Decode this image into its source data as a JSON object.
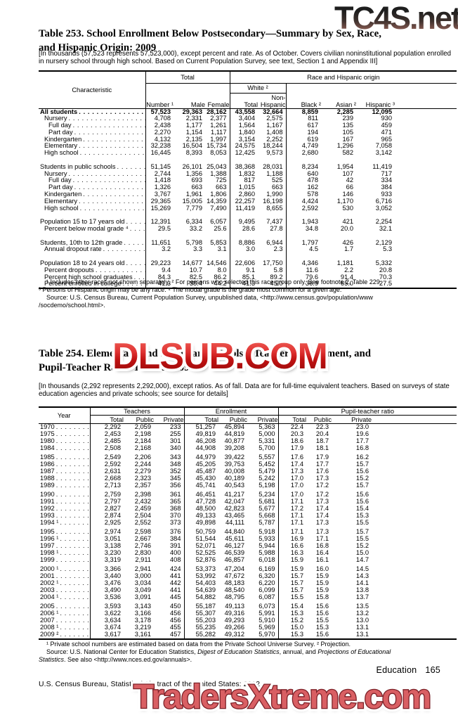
{
  "watermarks": {
    "top": "TC4S.net",
    "middle": "DLSUB.COM",
    "bottom": "TradersXtreme.com"
  },
  "table253": {
    "title_lines": [
      "Table 253. School Enrollment Below Postsecondary—Summary by Sex, Race,",
      "and Hispanic Origin: 2009"
    ],
    "note": "[In thousands (57,523 represents 57,523,000), except percent and rate. As of October. Covers civilian noninstitutional population enrolled in nursery school through high school. Based on Current Population Survey, see text, Section 1 and Appendix III]",
    "header": {
      "characteristic": "Characteristic",
      "group_total": "Total",
      "group_race": "Race and Hispanic origin",
      "group_white": "White ²",
      "col_number": "Number ¹",
      "col_male": "Male",
      "col_female": "Female",
      "col_white_total": "Total",
      "col_non_hispanic": "Non-\nHispanic",
      "col_black": "Black ²",
      "col_asian": "Asian ²",
      "col_hispanic": "Hispanic ³"
    },
    "sections": [
      [
        {
          "label": "All students",
          "indent": 0,
          "bold": true,
          "values": [
            "57,523",
            "29,363",
            "28,162",
            "43,558",
            "32,664",
            "8,859",
            "2,285",
            "12,095"
          ]
        },
        {
          "label": "Nursery",
          "indent": 1,
          "values": [
            "4,708",
            "2,331",
            "2,377",
            "3,404",
            "2,575",
            "811",
            "239",
            "930"
          ]
        },
        {
          "label": "Full day",
          "indent": 2,
          "values": [
            "2,438",
            "1,177",
            "1,261",
            "1,564",
            "1,167",
            "617",
            "135",
            "459"
          ]
        },
        {
          "label": "Part day",
          "indent": 2,
          "values": [
            "2,270",
            "1,154",
            "1,117",
            "1,840",
            "1,408",
            "194",
            "105",
            "471"
          ]
        },
        {
          "label": "Kindergarten",
          "indent": 1,
          "values": [
            "4,132",
            "2,135",
            "1,997",
            "3,154",
            "2,252",
            "619",
            "167",
            "965"
          ]
        },
        {
          "label": "Elementary",
          "indent": 1,
          "values": [
            "32,238",
            "16,504",
            "15,734",
            "24,575",
            "18,244",
            "4,749",
            "1,296",
            "7,058"
          ]
        },
        {
          "label": "High school",
          "indent": 1,
          "values": [
            "16,445",
            "8,393",
            "8,053",
            "12,425",
            "9,573",
            "2,680",
            "582",
            "3,142"
          ]
        }
      ],
      [
        {
          "label": "Students in public schools",
          "indent": 0,
          "values": [
            "51,145",
            "26,101",
            "25,043",
            "38,368",
            "28,031",
            "8,234",
            "1,954",
            "11,419"
          ]
        },
        {
          "label": "Nursery",
          "indent": 1,
          "values": [
            "2,744",
            "1,356",
            "1,388",
            "1,832",
            "1,188",
            "640",
            "107",
            "717"
          ]
        },
        {
          "label": "Full day",
          "indent": 2,
          "values": [
            "1,418",
            "693",
            "725",
            "817",
            "525",
            "478",
            "42",
            "334"
          ]
        },
        {
          "label": "Part day",
          "indent": 2,
          "values": [
            "1,326",
            "663",
            "663",
            "1,015",
            "663",
            "162",
            "66",
            "384"
          ]
        },
        {
          "label": "Kindergarten",
          "indent": 1,
          "values": [
            "3,767",
            "1,961",
            "1,806",
            "2,860",
            "1,990",
            "578",
            "146",
            "933"
          ]
        },
        {
          "label": "Elementary",
          "indent": 1,
          "values": [
            "29,365",
            "15,005",
            "14,359",
            "22,257",
            "16,198",
            "4,424",
            "1,170",
            "6,716"
          ]
        },
        {
          "label": "High school",
          "indent": 1,
          "values": [
            "15,269",
            "7,779",
            "7,490",
            "11,419",
            "8,655",
            "2,592",
            "530",
            "3,052"
          ]
        }
      ],
      [
        {
          "label": "Population 15 to 17 years old",
          "indent": 0,
          "values": [
            "12,391",
            "6,334",
            "6,057",
            "9,495",
            "7,437",
            "1,943",
            "421",
            "2,254"
          ]
        },
        {
          "label": "Percent below modal grade ⁴",
          "indent": 1,
          "values": [
            "29.5",
            "33.2",
            "25.6",
            "28.6",
            "27.8",
            "34.8",
            "20.0",
            "32.1"
          ]
        }
      ],
      [
        {
          "label": "Students, 10th to 12th grade",
          "indent": 0,
          "values": [
            "11,651",
            "5,798",
            "5,853",
            "8,886",
            "6,944",
            "1,797",
            "426",
            "2,129"
          ]
        },
        {
          "label": "Annual dropout rate",
          "indent": 1,
          "values": [
            "3.2",
            "3.3",
            "3.1",
            "3.0",
            "2.3",
            "4.5",
            "1.7",
            "5.3"
          ]
        }
      ],
      [
        {
          "label": "Population 18 to 24 years old",
          "indent": 0,
          "values": [
            "29,223",
            "14,677",
            "14,546",
            "22,606",
            "17,750",
            "4,346",
            "1,181",
            "5,332"
          ]
        },
        {
          "label": "Percent dropouts",
          "indent": 1,
          "values": [
            "9.4",
            "10.7",
            "8.0",
            "9.1",
            "5.8",
            "11.6",
            "2.2",
            "20.8"
          ]
        },
        {
          "label": "Percent high school graduates",
          "indent": 1,
          "values": [
            "84.3",
            "82.5",
            "86.2",
            "85.1",
            "89.2",
            "79.6",
            "91.4",
            "70.3"
          ]
        },
        {
          "label": "Percent enrolled in college",
          "indent": 1,
          "values": [
            "41.3",
            "38.4",
            "44.2",
            "41.3",
            "45.0",
            "36.9",
            "65.0",
            "27.5"
          ]
        }
      ]
    ],
    "footnotes": [
      {
        "indent": true,
        "segs": [
          {
            "t": "¹ Includes other races not shown separately. ² For persons who selected this race group only. See footnote 2, Table 229."
          }
        ]
      },
      {
        "indent": false,
        "segs": [
          {
            "t": "³ Persons of Hispanic origin may be any race. ⁴ The modal grade is the grade most common for a given age."
          }
        ]
      },
      {
        "indent": true,
        "segs": [
          {
            "t": "Source: U.S. Census Bureau, Current Population Survey, unpublished data, <http://www.census.gov/population/www"
          }
        ]
      },
      {
        "indent": false,
        "segs": [
          {
            "t": "/socdemo/school.html>."
          }
        ]
      }
    ]
  },
  "table254": {
    "title_lines": [
      "Table 254. Elementary and Secondary Schools—Teachers, Enrollment, and",
      "Pupil-Teacher Ratio: 1970 to 2009"
    ],
    "note": "[In thousands (2,292 represents 2,292,000), except ratios. As of fall. Data are for full-time equivalent teachers. Based on surveys of state education agencies and private schools; see source for details]",
    "header": {
      "year": "Year",
      "groups": [
        {
          "label": "Teachers"
        },
        {
          "label": "Enrollment"
        },
        {
          "label": "Pupil-teacher ratio"
        }
      ],
      "sub": [
        "Total",
        "Public",
        "Private"
      ]
    },
    "sections": [
      [
        {
          "label": "1970",
          "indent": 0,
          "values": [
            "2,292",
            "2,059",
            "233",
            "51,257",
            "45,894",
            "5,363",
            "22.4",
            "22.3",
            "23.0"
          ]
        },
        {
          "label": "1975",
          "indent": 0,
          "values": [
            "2,453",
            "2,198",
            "255",
            "49,819",
            "44,819",
            "5,000",
            "20.3",
            "20.4",
            "19.6"
          ]
        },
        {
          "label": "1980",
          "indent": 0,
          "values": [
            "2,485",
            "2,184",
            "301",
            "46,208",
            "40,877",
            "5,331",
            "18.6",
            "18.7",
            "17.7"
          ]
        },
        {
          "label": "1984",
          "indent": 0,
          "values": [
            "2,508",
            "2,168",
            "340",
            "44,908",
            "39,208",
            "5,700",
            "17.9",
            "18.1",
            "16.8"
          ]
        }
      ],
      [
        {
          "label": "1985",
          "indent": 0,
          "values": [
            "2,549",
            "2,206",
            "343",
            "44,979",
            "39,422",
            "5,557",
            "17.6",
            "17.9",
            "16.2"
          ]
        },
        {
          "label": "1986",
          "indent": 0,
          "values": [
            "2,592",
            "2,244",
            "348",
            "45,205",
            "39,753",
            "5,452",
            "17.4",
            "17.7",
            "15.7"
          ]
        },
        {
          "label": "1987",
          "indent": 0,
          "values": [
            "2,631",
            "2,279",
            "352",
            "45,487",
            "40,008",
            "5,479",
            "17.3",
            "17.6",
            "15.6"
          ]
        },
        {
          "label": "1988",
          "indent": 0,
          "values": [
            "2,668",
            "2,323",
            "345",
            "45,430",
            "40,189",
            "5,242",
            "17.0",
            "17.3",
            "15.2"
          ]
        },
        {
          "label": "1989",
          "indent": 0,
          "values": [
            "2,713",
            "2,357",
            "356",
            "45,741",
            "40,543",
            "5,198",
            "17.0",
            "17.2",
            "15.7"
          ]
        }
      ],
      [
        {
          "label": "1990",
          "indent": 0,
          "values": [
            "2,759",
            "2,398",
            "361",
            "46,451",
            "41,217",
            "5,234",
            "17.0",
            "17.2",
            "15.6"
          ]
        },
        {
          "label": "1991",
          "indent": 0,
          "values": [
            "2,797",
            "2,432",
            "365",
            "47,728",
            "42,047",
            "5,681",
            "17.1",
            "17.3",
            "15.6"
          ]
        },
        {
          "label": "1992",
          "indent": 0,
          "values": [
            "2,827",
            "2,459",
            "368",
            "48,500",
            "42,823",
            "5,677",
            "17.2",
            "17.4",
            "15.4"
          ]
        },
        {
          "label": "1993",
          "indent": 0,
          "values": [
            "2,874",
            "2,504",
            "370",
            "49,133",
            "43,465",
            "5,668",
            "17.1",
            "17.4",
            "15.3"
          ]
        },
        {
          "label": "1994 ¹",
          "indent": 0,
          "values": [
            "2,925",
            "2,552",
            "373",
            "49,898",
            "44,111",
            "5,787",
            "17.1",
            "17.3",
            "15.5"
          ]
        }
      ],
      [
        {
          "label": "1995",
          "indent": 0,
          "values": [
            "2,974",
            "2,598",
            "376",
            "50,759",
            "44,840",
            "5,918",
            "17.1",
            "17.3",
            "15.7"
          ]
        },
        {
          "label": "1996 ¹",
          "indent": 0,
          "values": [
            "3,051",
            "2,667",
            "384",
            "51,544",
            "45,611",
            "5,933",
            "16.9",
            "17.1",
            "15.5"
          ]
        },
        {
          "label": "1997",
          "indent": 0,
          "values": [
            "3,138",
            "2,746",
            "391",
            "52,071",
            "46,127",
            "5,944",
            "16.6",
            "16.8",
            "15.2"
          ]
        },
        {
          "label": "1998 ¹",
          "indent": 0,
          "values": [
            "3,230",
            "2,830",
            "400",
            "52,525",
            "46,539",
            "5,988",
            "16.3",
            "16.4",
            "15.0"
          ]
        },
        {
          "label": "1999",
          "indent": 0,
          "values": [
            "3,319",
            "2,911",
            "408",
            "52,876",
            "46,857",
            "6,018",
            "15.9",
            "16.1",
            "14.7"
          ]
        }
      ],
      [
        {
          "label": "2000 ¹",
          "indent": 0,
          "values": [
            "3,366",
            "2,941",
            "424",
            "53,373",
            "47,204",
            "6,169",
            "15.9",
            "16.0",
            "14.5"
          ]
        },
        {
          "label": "2001",
          "indent": 0,
          "values": [
            "3,440",
            "3,000",
            "441",
            "53,992",
            "47,672",
            "6,320",
            "15.7",
            "15.9",
            "14.3"
          ]
        },
        {
          "label": "2002 ¹",
          "indent": 0,
          "values": [
            "3,476",
            "3,034",
            "442",
            "54,403",
            "48,183",
            "6,220",
            "15.7",
            "15.9",
            "14.1"
          ]
        },
        {
          "label": "2003",
          "indent": 0,
          "values": [
            "3,490",
            "3,049",
            "441",
            "54,639",
            "48,540",
            "6,099",
            "15.7",
            "15.9",
            "13.8"
          ]
        },
        {
          "label": "2004 ¹",
          "indent": 0,
          "values": [
            "3,536",
            "3,091",
            "445",
            "54,882",
            "48,795",
            "6,087",
            "15.5",
            "15.8",
            "13.7"
          ]
        }
      ],
      [
        {
          "label": "2005",
          "indent": 0,
          "values": [
            "3,593",
            "3,143",
            "450",
            "55,187",
            "49,113",
            "6,073",
            "15.4",
            "15.6",
            "13.5"
          ]
        },
        {
          "label": "2006 ¹",
          "indent": 0,
          "values": [
            "3,622",
            "3,166",
            "456",
            "55,307",
            "49,316",
            "5,991",
            "15.3",
            "15.6",
            "13.2"
          ]
        },
        {
          "label": "2007",
          "indent": 0,
          "values": [
            "3,634",
            "3,178",
            "456",
            "55,203",
            "49,293",
            "5,910",
            "15.2",
            "15.5",
            "13.0"
          ]
        },
        {
          "label": "2008 ¹",
          "indent": 0,
          "values": [
            "3,674",
            "3,219",
            "455",
            "55,235",
            "49,266",
            "5,969",
            "15.0",
            "15.3",
            "13.1"
          ]
        },
        {
          "label": "2009 ²",
          "indent": 0,
          "values": [
            "3,617",
            "3,161",
            "457",
            "55,282",
            "49,312",
            "5,970",
            "15.3",
            "15.6",
            "13.1"
          ]
        }
      ]
    ],
    "footnotes": [
      {
        "indent": true,
        "segs": [
          {
            "t": "¹ Private school numbers are estimated based on data from the Private School Universe Survey. ² Projection."
          }
        ]
      },
      {
        "indent": true,
        "segs": [
          {
            "t": "Source: U.S. National Center for Education Statistics, "
          },
          {
            "t": "Digest of Education Statistics",
            "i": true
          },
          {
            "t": ", annual, and ",
            "i": false
          },
          {
            "t": "Projections of Educational",
            "i": true
          }
        ]
      },
      {
        "indent": false,
        "segs": [
          {
            "t": "Statistics",
            "i": true
          },
          {
            "t": ". See also <http://www.nces.ed.gov/annuals>."
          }
        ]
      }
    ]
  },
  "footer": {
    "section_label": "Education",
    "page_number": "165",
    "source_line": "U.S. Census Bureau, Statistical Abstract of the United States: 2012"
  }
}
